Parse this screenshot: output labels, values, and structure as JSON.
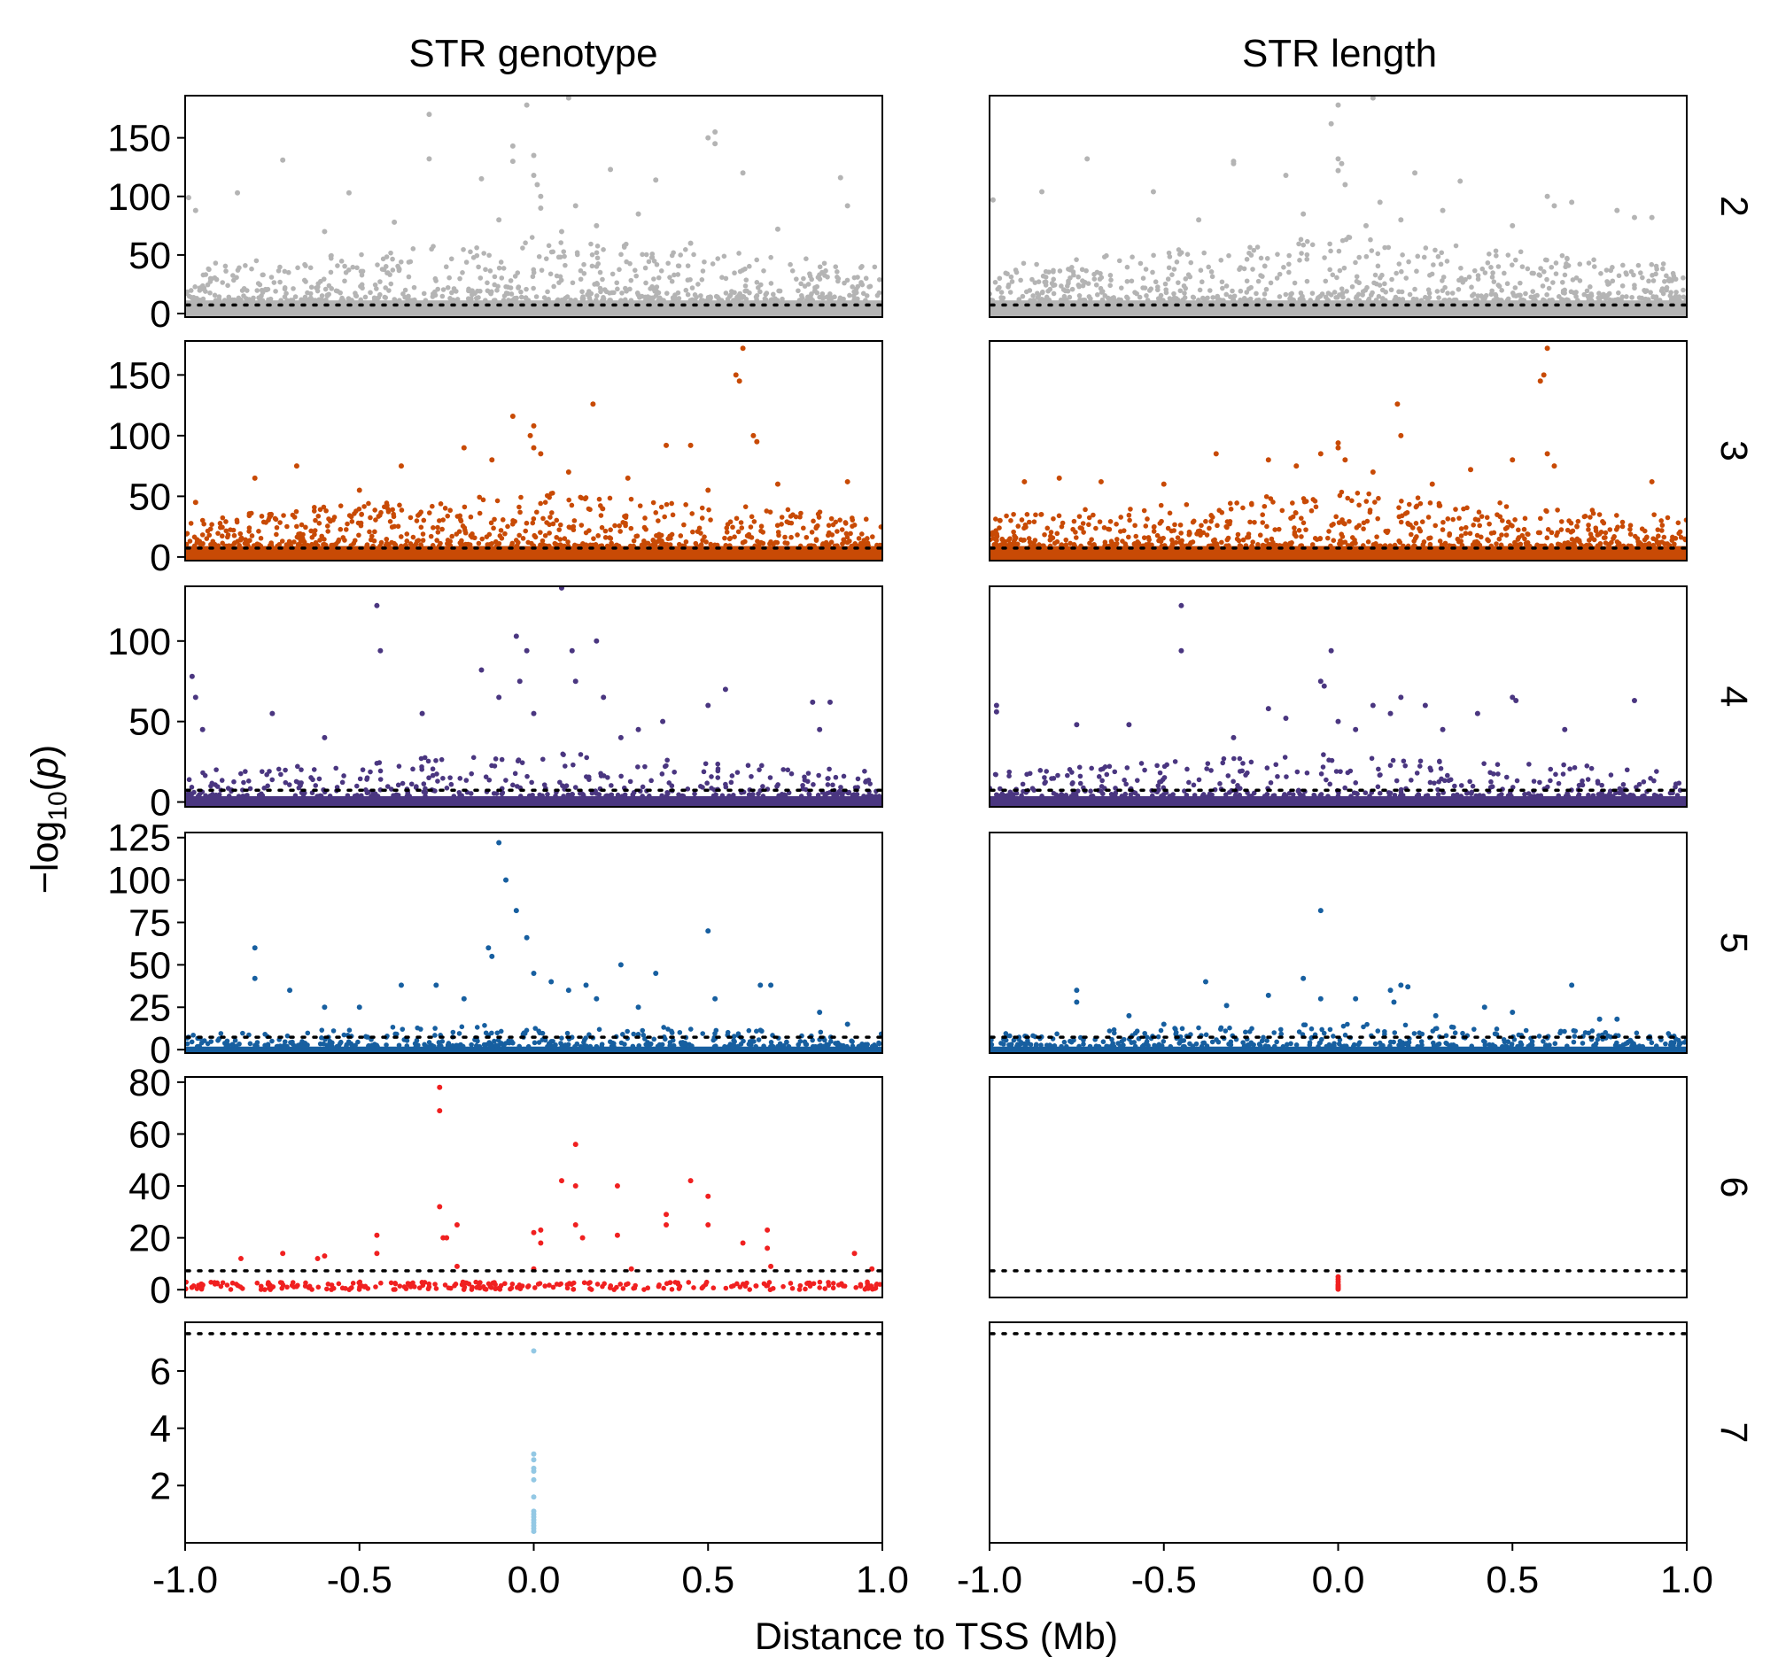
{
  "chart_data": {
    "type": "scatter",
    "columns": [
      "STR genotype",
      "STR length"
    ],
    "rows": [
      "2",
      "3",
      "4",
      "5",
      "6",
      "7"
    ],
    "xlabel": "Distance to TSS (Mb)",
    "ylabel": "-log10(p)",
    "xlim": [
      -1.0,
      1.0
    ],
    "xticks": [
      "-1.0",
      "-0.5",
      "0.0",
      "0.5",
      "1.0"
    ],
    "threshold": 7.3,
    "grid": false,
    "legend": "none",
    "panels": [
      {
        "row": "2",
        "color": "#b4b4b4",
        "ylim": [
          -3,
          186
        ],
        "yticks": [
          0,
          50,
          100,
          150
        ],
        "band_top": 25
      },
      {
        "row": "3",
        "color": "#c84a05",
        "ylim": [
          -3,
          178
        ],
        "yticks": [
          0,
          50,
          100,
          150
        ],
        "band_top": 20
      },
      {
        "row": "4",
        "color": "#4a3680",
        "ylim": [
          -3,
          134
        ],
        "yticks": [
          0,
          50,
          100
        ],
        "band_top": 8
      },
      {
        "row": "5",
        "color": "#175fa0",
        "ylim": [
          -2,
          128
        ],
        "yticks": [
          0,
          25,
          50,
          75,
          100,
          125
        ],
        "band_top": 4
      },
      {
        "row": "6",
        "color": "#f02020",
        "ylim": [
          -3,
          82
        ],
        "yticks": [
          0,
          20,
          40,
          60,
          80
        ],
        "band_top": 0
      },
      {
        "row": "7",
        "color": "#93c8e4",
        "ylim": [
          0,
          7.7
        ],
        "yticks": [
          2,
          4,
          6
        ],
        "band_top": 0
      }
    ],
    "series": [
      {
        "column": "STR genotype",
        "row": "2",
        "points": [
          [
            -0.99,
            99
          ],
          [
            -0.97,
            88
          ],
          [
            -0.85,
            103
          ],
          [
            -0.72,
            131
          ],
          [
            -0.53,
            103
          ],
          [
            -0.3,
            170
          ],
          [
            -0.3,
            132
          ],
          [
            -0.15,
            115
          ],
          [
            -0.06,
            143
          ],
          [
            -0.06,
            130
          ],
          [
            -0.02,
            178
          ],
          [
            0.0,
            135
          ],
          [
            0.0,
            118
          ],
          [
            0.01,
            110
          ],
          [
            0.02,
            100
          ],
          [
            0.02,
            90
          ],
          [
            0.1,
            184
          ],
          [
            0.22,
            123
          ],
          [
            0.35,
            114
          ],
          [
            0.5,
            150
          ],
          [
            0.52,
            155
          ],
          [
            0.52,
            145
          ],
          [
            0.6,
            120
          ],
          [
            0.88,
            116
          ],
          [
            0.9,
            92
          ],
          [
            0.12,
            92
          ],
          [
            0.3,
            85
          ],
          [
            -0.4,
            78
          ],
          [
            0.45,
            60
          ],
          [
            0.7,
            72
          ],
          [
            -0.6,
            70
          ],
          [
            0.18,
            75
          ],
          [
            -0.1,
            80
          ],
          [
            0.08,
            70
          ]
        ]
      },
      {
        "column": "STR genotype",
        "row": "3",
        "points": [
          [
            -0.97,
            45
          ],
          [
            -0.8,
            65
          ],
          [
            -0.68,
            75
          ],
          [
            -0.38,
            75
          ],
          [
            -0.2,
            90
          ],
          [
            -0.06,
            116
          ],
          [
            0.0,
            108
          ],
          [
            -0.01,
            100
          ],
          [
            0.0,
            90
          ],
          [
            0.02,
            85
          ],
          [
            0.17,
            126
          ],
          [
            0.38,
            92
          ],
          [
            0.45,
            92
          ],
          [
            0.58,
            150
          ],
          [
            0.59,
            145
          ],
          [
            0.6,
            172
          ],
          [
            0.63,
            100
          ],
          [
            0.64,
            95
          ],
          [
            0.7,
            60
          ],
          [
            0.9,
            62
          ],
          [
            0.27,
            65
          ],
          [
            -0.5,
            55
          ],
          [
            0.1,
            70
          ],
          [
            -0.12,
            80
          ],
          [
            0.5,
            55
          ]
        ]
      },
      {
        "column": "STR genotype",
        "row": "4",
        "points": [
          [
            -0.98,
            78
          ],
          [
            -0.97,
            65
          ],
          [
            -0.95,
            45
          ],
          [
            -0.75,
            55
          ],
          [
            -0.45,
            122
          ],
          [
            -0.44,
            94
          ],
          [
            -0.32,
            55
          ],
          [
            -0.15,
            82
          ],
          [
            -0.1,
            65
          ],
          [
            -0.05,
            103
          ],
          [
            -0.04,
            75
          ],
          [
            -0.02,
            94
          ],
          [
            0.08,
            133
          ],
          [
            0.11,
            94
          ],
          [
            0.12,
            75
          ],
          [
            0.18,
            100
          ],
          [
            0.2,
            65
          ],
          [
            0.37,
            50
          ],
          [
            0.5,
            60
          ],
          [
            0.55,
            70
          ],
          [
            0.8,
            62
          ],
          [
            0.85,
            62
          ],
          [
            0.82,
            45
          ],
          [
            0.3,
            45
          ],
          [
            -0.6,
            40
          ],
          [
            0.0,
            55
          ],
          [
            0.25,
            40
          ]
        ]
      },
      {
        "column": "STR genotype",
        "row": "5",
        "points": [
          [
            -0.8,
            60
          ],
          [
            -0.8,
            42
          ],
          [
            -0.6,
            25
          ],
          [
            -0.5,
            25
          ],
          [
            -0.38,
            38
          ],
          [
            -0.28,
            38
          ],
          [
            -0.13,
            60
          ],
          [
            -0.12,
            55
          ],
          [
            -0.1,
            122
          ],
          [
            -0.08,
            100
          ],
          [
            -0.05,
            82
          ],
          [
            -0.02,
            66
          ],
          [
            0.0,
            45
          ],
          [
            0.05,
            40
          ],
          [
            0.1,
            35
          ],
          [
            0.15,
            38
          ],
          [
            0.18,
            30
          ],
          [
            0.25,
            50
          ],
          [
            0.35,
            45
          ],
          [
            0.5,
            70
          ],
          [
            0.52,
            30
          ],
          [
            0.65,
            38
          ],
          [
            0.68,
            38
          ],
          [
            0.82,
            22
          ],
          [
            0.9,
            15
          ],
          [
            -0.7,
            35
          ],
          [
            0.3,
            25
          ],
          [
            -0.2,
            30
          ]
        ]
      },
      {
        "column": "STR genotype",
        "row": "6",
        "points": [
          [
            -0.27,
            78
          ],
          [
            -0.27,
            69
          ],
          [
            -0.27,
            32
          ],
          [
            -0.26,
            20
          ],
          [
            -0.25,
            20
          ],
          [
            -0.22,
            25
          ],
          [
            -0.22,
            9
          ],
          [
            -0.45,
            21
          ],
          [
            -0.45,
            14
          ],
          [
            -0.6,
            13
          ],
          [
            -0.62,
            12
          ],
          [
            -0.72,
            14
          ],
          [
            -0.84,
            12
          ],
          [
            0.0,
            22
          ],
          [
            0.0,
            8
          ],
          [
            0.02,
            23
          ],
          [
            0.02,
            18
          ],
          [
            0.08,
            42
          ],
          [
            0.12,
            56
          ],
          [
            0.12,
            40
          ],
          [
            0.12,
            25
          ],
          [
            0.14,
            20
          ],
          [
            0.24,
            40
          ],
          [
            0.24,
            21
          ],
          [
            0.28,
            8
          ],
          [
            0.38,
            29
          ],
          [
            0.38,
            25
          ],
          [
            0.45,
            42
          ],
          [
            0.5,
            36
          ],
          [
            0.5,
            25
          ],
          [
            0.6,
            18
          ],
          [
            0.67,
            23
          ],
          [
            0.67,
            16
          ],
          [
            0.68,
            9
          ],
          [
            0.92,
            14
          ],
          [
            0.97,
            8
          ]
        ]
      },
      {
        "column": "STR genotype",
        "row": "7",
        "points": [
          [
            0.0,
            6.7
          ],
          [
            0.0,
            3.1
          ],
          [
            0.0,
            2.9
          ],
          [
            0.0,
            2.6
          ],
          [
            0.0,
            2.5
          ],
          [
            0.0,
            2.2
          ],
          [
            0.0,
            1.6
          ],
          [
            0.0,
            1.1
          ],
          [
            0.0,
            1.0
          ],
          [
            0.0,
            0.9
          ],
          [
            0.0,
            0.8
          ],
          [
            0.0,
            0.7
          ],
          [
            0.0,
            0.6
          ],
          [
            0.0,
            0.5
          ],
          [
            0.0,
            0.4
          ]
        ]
      },
      {
        "column": "STR length",
        "row": "2",
        "points": [
          [
            -0.99,
            97
          ],
          [
            -0.85,
            104
          ],
          [
            -0.72,
            132
          ],
          [
            -0.53,
            104
          ],
          [
            -0.3,
            130
          ],
          [
            -0.3,
            128
          ],
          [
            -0.15,
            118
          ],
          [
            -0.02,
            162
          ],
          [
            0.0,
            178
          ],
          [
            0.0,
            132
          ],
          [
            0.01,
            128
          ],
          [
            0.0,
            122
          ],
          [
            0.02,
            110
          ],
          [
            0.1,
            184
          ],
          [
            0.22,
            120
          ],
          [
            0.35,
            113
          ],
          [
            0.6,
            100
          ],
          [
            0.62,
            92
          ],
          [
            0.67,
            95
          ],
          [
            0.8,
            88
          ],
          [
            0.85,
            82
          ],
          [
            0.9,
            82
          ],
          [
            0.12,
            95
          ],
          [
            0.3,
            88
          ],
          [
            -0.4,
            80
          ],
          [
            0.5,
            75
          ],
          [
            0.18,
            80
          ],
          [
            -0.1,
            85
          ],
          [
            0.08,
            75
          ]
        ]
      },
      {
        "column": "STR length",
        "row": "3",
        "points": [
          [
            -0.97,
            30
          ],
          [
            -0.9,
            62
          ],
          [
            -0.8,
            65
          ],
          [
            -0.68,
            62
          ],
          [
            -0.5,
            60
          ],
          [
            -0.35,
            85
          ],
          [
            -0.2,
            80
          ],
          [
            -0.05,
            85
          ],
          [
            0.0,
            94
          ],
          [
            0.0,
            90
          ],
          [
            0.02,
            80
          ],
          [
            0.17,
            126
          ],
          [
            0.18,
            100
          ],
          [
            0.38,
            72
          ],
          [
            0.5,
            80
          ],
          [
            0.58,
            145
          ],
          [
            0.59,
            150
          ],
          [
            0.6,
            172
          ],
          [
            0.6,
            85
          ],
          [
            0.62,
            75
          ],
          [
            0.9,
            62
          ],
          [
            0.27,
            60
          ],
          [
            0.1,
            70
          ],
          [
            -0.12,
            75
          ]
        ]
      },
      {
        "column": "STR length",
        "row": "4",
        "points": [
          [
            -0.98,
            60
          ],
          [
            -0.98,
            56
          ],
          [
            -0.75,
            48
          ],
          [
            -0.6,
            48
          ],
          [
            -0.45,
            122
          ],
          [
            -0.45,
            94
          ],
          [
            -0.2,
            58
          ],
          [
            -0.15,
            52
          ],
          [
            -0.05,
            75
          ],
          [
            -0.04,
            72
          ],
          [
            -0.02,
            94
          ],
          [
            0.0,
            50
          ],
          [
            0.05,
            45
          ],
          [
            0.1,
            60
          ],
          [
            0.15,
            55
          ],
          [
            0.18,
            65
          ],
          [
            0.25,
            60
          ],
          [
            0.4,
            55
          ],
          [
            0.5,
            65
          ],
          [
            0.51,
            63
          ],
          [
            0.65,
            45
          ],
          [
            0.85,
            63
          ],
          [
            0.3,
            45
          ],
          [
            -0.3,
            40
          ]
        ]
      },
      {
        "column": "STR length",
        "row": "5",
        "points": [
          [
            -0.75,
            35
          ],
          [
            -0.75,
            28
          ],
          [
            -0.38,
            40
          ],
          [
            -0.32,
            26
          ],
          [
            -0.2,
            32
          ],
          [
            -0.1,
            42
          ],
          [
            -0.05,
            82
          ],
          [
            -0.05,
            30
          ],
          [
            0.05,
            30
          ],
          [
            0.15,
            35
          ],
          [
            0.16,
            28
          ],
          [
            0.18,
            38
          ],
          [
            0.2,
            37
          ],
          [
            0.28,
            20
          ],
          [
            0.42,
            25
          ],
          [
            0.5,
            22
          ],
          [
            0.67,
            38
          ],
          [
            0.75,
            18
          ],
          [
            0.8,
            18
          ],
          [
            -0.6,
            20
          ],
          [
            -0.5,
            15
          ]
        ]
      },
      {
        "column": "STR length",
        "row": "6",
        "points": [
          [
            0.0,
            5
          ],
          [
            0.0,
            4
          ],
          [
            0.0,
            3
          ],
          [
            0.0,
            2
          ],
          [
            0.0,
            1.5
          ],
          [
            0.0,
            1
          ],
          [
            0.0,
            0.5
          ],
          [
            0.0,
            0.2
          ]
        ]
      },
      {
        "column": "STR length",
        "row": "7",
        "points": []
      }
    ]
  }
}
